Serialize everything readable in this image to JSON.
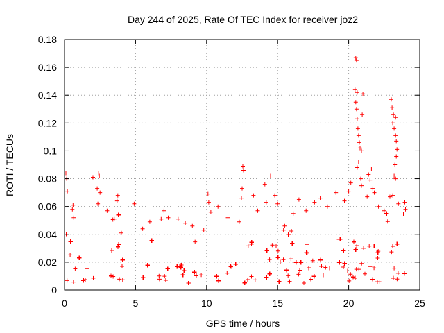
{
  "chart_data": {
    "type": "scatter",
    "title": "Day 244 of 2025, Rate Of TEC Index for receiver joz2",
    "xlabel": "GPS time / hours",
    "ylabel": "ROTI / TECUs",
    "xlim": [
      0,
      25
    ],
    "ylim": [
      0,
      0.18
    ],
    "xticks": [
      0,
      5,
      10,
      15,
      20,
      25
    ],
    "xtick_labels": [
      "0",
      "5",
      "10",
      "15",
      "20",
      "25"
    ],
    "yticks": [
      0,
      0.02,
      0.04,
      0.06,
      0.08,
      0.1,
      0.12,
      0.14,
      0.16,
      0.18
    ],
    "ytick_labels": [
      "0",
      "0.02",
      "0.04",
      "0.06",
      "0.08",
      "0.1",
      "0.12",
      "0.14",
      "0.16",
      "0.18"
    ],
    "grid": true,
    "marker": "+",
    "color": "#ff0000",
    "series": [
      {
        "name": "ROTI",
        "x_range": [
          0,
          24
        ],
        "typical_range": [
          0.005,
          0.035
        ],
        "spikes": [
          {
            "x": 0.1,
            "y": 0.084
          },
          {
            "x": 0.15,
            "y": 0.08
          },
          {
            "x": 0.2,
            "y": 0.071
          },
          {
            "x": 0.6,
            "y": 0.061
          },
          {
            "x": 0.55,
            "y": 0.058
          },
          {
            "x": 0.65,
            "y": 0.052
          },
          {
            "x": 2.0,
            "y": 0.081
          },
          {
            "x": 2.4,
            "y": 0.084
          },
          {
            "x": 2.45,
            "y": 0.082
          },
          {
            "x": 2.3,
            "y": 0.073
          },
          {
            "x": 2.5,
            "y": 0.07
          },
          {
            "x": 2.35,
            "y": 0.062
          },
          {
            "x": 3.0,
            "y": 0.057
          },
          {
            "x": 3.5,
            "y": 0.051
          },
          {
            "x": 3.7,
            "y": 0.064
          },
          {
            "x": 3.75,
            "y": 0.068
          },
          {
            "x": 4.0,
            "y": 0.041
          },
          {
            "x": 4.9,
            "y": 0.062
          },
          {
            "x": 5.5,
            "y": 0.044
          },
          {
            "x": 6.0,
            "y": 0.049
          },
          {
            "x": 6.8,
            "y": 0.051
          },
          {
            "x": 7.0,
            "y": 0.057
          },
          {
            "x": 7.3,
            "y": 0.052
          },
          {
            "x": 8.0,
            "y": 0.051
          },
          {
            "x": 8.5,
            "y": 0.048
          },
          {
            "x": 9.0,
            "y": 0.046
          },
          {
            "x": 9.8,
            "y": 0.043
          },
          {
            "x": 10.1,
            "y": 0.069
          },
          {
            "x": 10.15,
            "y": 0.063
          },
          {
            "x": 10.3,
            "y": 0.056
          },
          {
            "x": 10.8,
            "y": 0.06
          },
          {
            "x": 11.5,
            "y": 0.052
          },
          {
            "x": 12.3,
            "y": 0.049
          },
          {
            "x": 12.55,
            "y": 0.089
          },
          {
            "x": 12.6,
            "y": 0.086
          },
          {
            "x": 12.5,
            "y": 0.073
          },
          {
            "x": 12.45,
            "y": 0.066
          },
          {
            "x": 13.3,
            "y": 0.068
          },
          {
            "x": 13.6,
            "y": 0.057
          },
          {
            "x": 14.1,
            "y": 0.076
          },
          {
            "x": 14.5,
            "y": 0.082
          },
          {
            "x": 14.2,
            "y": 0.063
          },
          {
            "x": 14.8,
            "y": 0.068
          },
          {
            "x": 15.0,
            "y": 0.062
          },
          {
            "x": 15.5,
            "y": 0.046
          },
          {
            "x": 16.1,
            "y": 0.055
          },
          {
            "x": 16.5,
            "y": 0.065
          },
          {
            "x": 17.0,
            "y": 0.057
          },
          {
            "x": 17.6,
            "y": 0.063
          },
          {
            "x": 18.0,
            "y": 0.066
          },
          {
            "x": 18.5,
            "y": 0.06
          },
          {
            "x": 19.1,
            "y": 0.07
          },
          {
            "x": 19.7,
            "y": 0.064
          },
          {
            "x": 20.0,
            "y": 0.071
          },
          {
            "x": 20.15,
            "y": 0.077
          },
          {
            "x": 20.5,
            "y": 0.167
          },
          {
            "x": 20.55,
            "y": 0.165
          },
          {
            "x": 20.45,
            "y": 0.144
          },
          {
            "x": 20.6,
            "y": 0.142
          },
          {
            "x": 20.5,
            "y": 0.135
          },
          {
            "x": 20.55,
            "y": 0.13
          },
          {
            "x": 20.6,
            "y": 0.123
          },
          {
            "x": 20.65,
            "y": 0.116
          },
          {
            "x": 20.7,
            "y": 0.111
          },
          {
            "x": 20.75,
            "y": 0.106
          },
          {
            "x": 20.8,
            "y": 0.102
          },
          {
            "x": 20.9,
            "y": 0.1
          },
          {
            "x": 20.7,
            "y": 0.092
          },
          {
            "x": 20.6,
            "y": 0.088
          },
          {
            "x": 20.85,
            "y": 0.08
          },
          {
            "x": 20.9,
            "y": 0.075
          },
          {
            "x": 21.0,
            "y": 0.141
          },
          {
            "x": 20.95,
            "y": 0.126
          },
          {
            "x": 21.4,
            "y": 0.083
          },
          {
            "x": 21.6,
            "y": 0.087
          },
          {
            "x": 21.5,
            "y": 0.079
          },
          {
            "x": 21.7,
            "y": 0.073
          },
          {
            "x": 21.8,
            "y": 0.07
          },
          {
            "x": 21.3,
            "y": 0.067
          },
          {
            "x": 22.1,
            "y": 0.06
          },
          {
            "x": 22.5,
            "y": 0.057
          },
          {
            "x": 22.9,
            "y": 0.067
          },
          {
            "x": 23.0,
            "y": 0.137
          },
          {
            "x": 23.05,
            "y": 0.131
          },
          {
            "x": 23.15,
            "y": 0.126
          },
          {
            "x": 23.3,
            "y": 0.124
          },
          {
            "x": 23.1,
            "y": 0.12
          },
          {
            "x": 23.2,
            "y": 0.116
          },
          {
            "x": 23.3,
            "y": 0.111
          },
          {
            "x": 23.35,
            "y": 0.107
          },
          {
            "x": 23.4,
            "y": 0.101
          },
          {
            "x": 23.35,
            "y": 0.096
          },
          {
            "x": 23.25,
            "y": 0.09
          },
          {
            "x": 23.2,
            "y": 0.082
          },
          {
            "x": 23.3,
            "y": 0.08
          },
          {
            "x": 23.1,
            "y": 0.068
          },
          {
            "x": 23.5,
            "y": 0.062
          },
          {
            "x": 23.95,
            "y": 0.063
          },
          {
            "x": 24.0,
            "y": 0.058
          }
        ]
      }
    ]
  }
}
